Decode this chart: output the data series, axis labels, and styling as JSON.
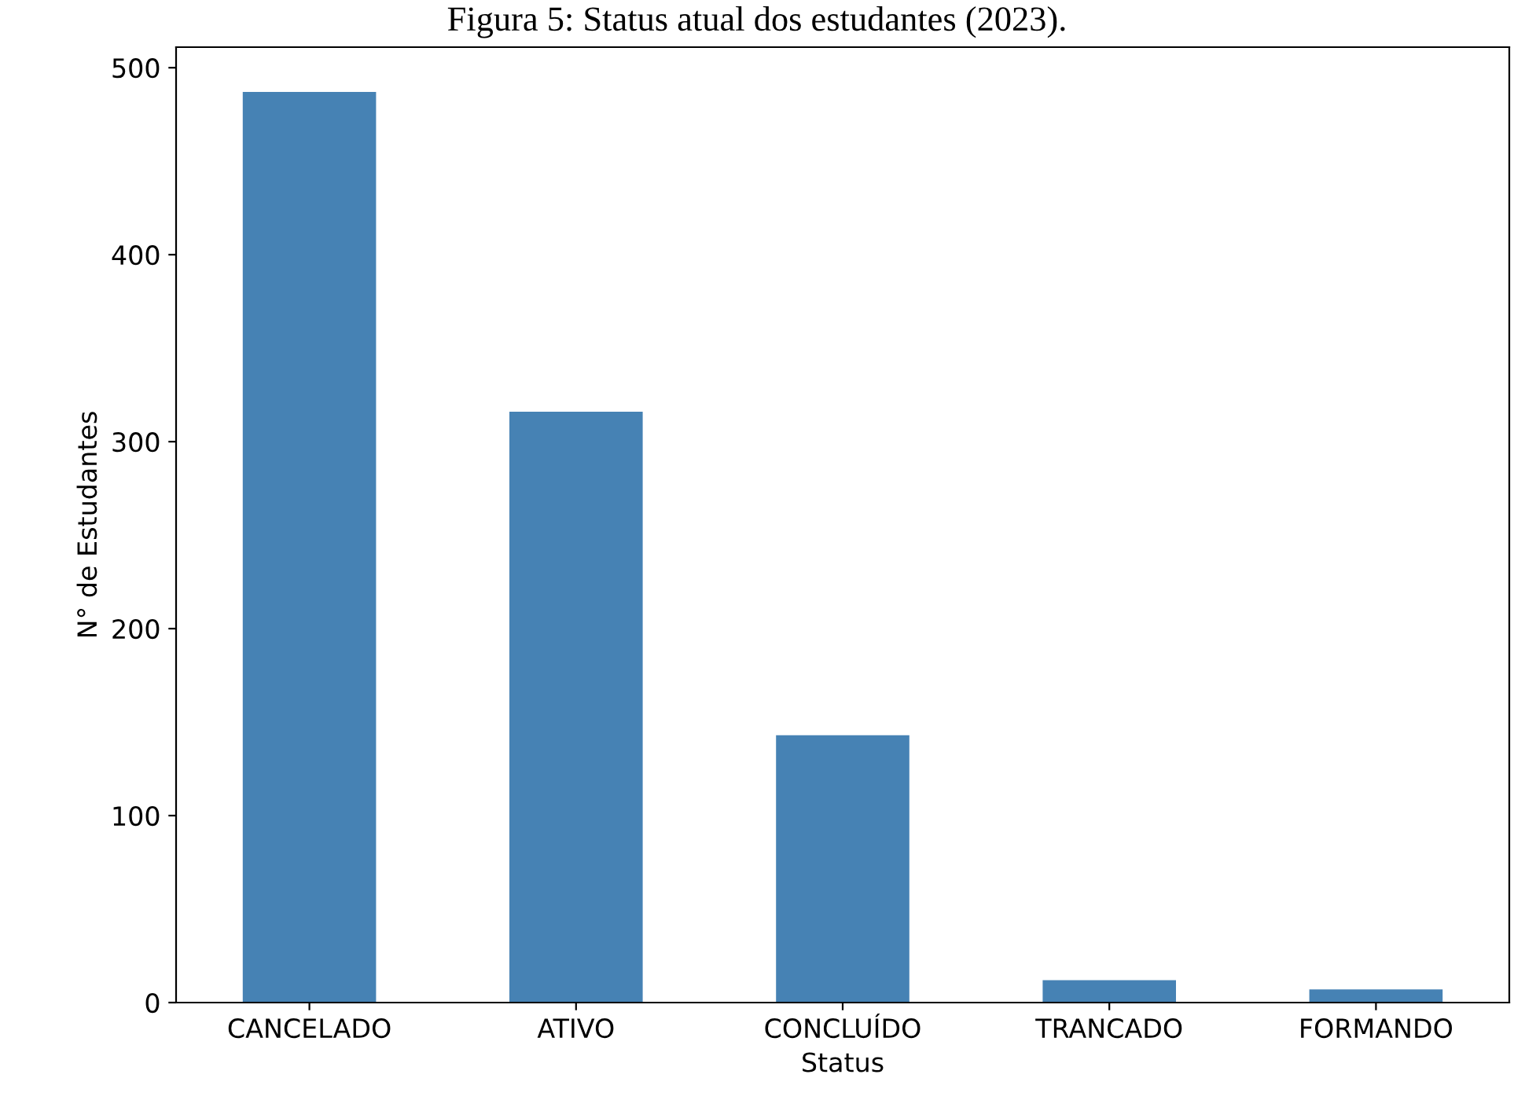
{
  "chart_data": {
    "type": "bar",
    "title": "Figura 5: Status atual dos estudantes (2023).",
    "xlabel": "Status",
    "ylabel": "N° de Estudantes",
    "categories": [
      "CANCELADO",
      "ATIVO",
      "CONCLUÍDO",
      "TRANCADO",
      "FORMANDO"
    ],
    "values": [
      487,
      316,
      143,
      12,
      7
    ],
    "color": "#4682b4",
    "ylim": [
      0,
      511
    ],
    "yticks": [
      0,
      100,
      200,
      300,
      400,
      500
    ],
    "grid": false,
    "legend": false
  }
}
